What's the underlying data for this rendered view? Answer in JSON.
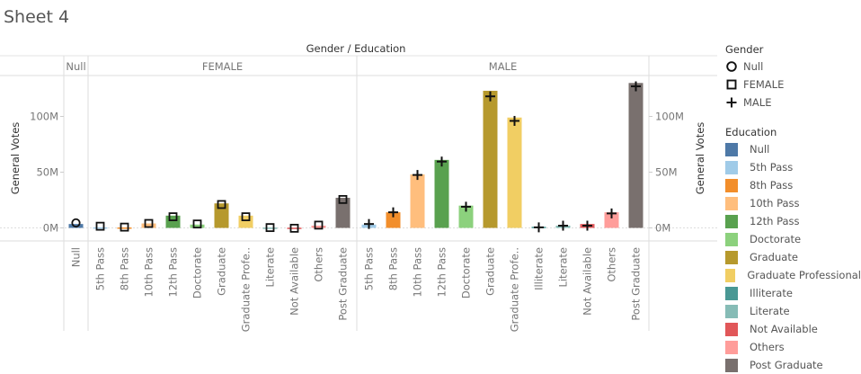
{
  "sheet": {
    "title": "Sheet 4"
  },
  "chart_data": {
    "type": "bar",
    "title": "Gender / Education",
    "ylabel": "General Votes",
    "ylim": [
      0,
      135000000
    ],
    "yticks": [
      {
        "value": 0,
        "label": "0M"
      },
      {
        "value": 50000000,
        "label": "50M"
      },
      {
        "value": 100000000,
        "label": "100M"
      }
    ],
    "panels": [
      {
        "gender": "Null",
        "label": "Null",
        "shape": "circle",
        "categories": [
          "Null"
        ],
        "values": [
          3500000
        ],
        "marks": [
          4500000
        ]
      },
      {
        "gender": "FEMALE",
        "label": "FEMALE",
        "shape": "square",
        "categories": [
          "5th Pass",
          "8th Pass",
          "10th Pass",
          "12th Pass",
          "Doctorate",
          "Graduate",
          "Graduate Profe..",
          "Literate",
          "Not Available",
          "Others",
          "Post Graduate"
        ],
        "values": [
          500000,
          400000,
          4000000,
          11000000,
          3000000,
          22000000,
          11000000,
          300000,
          200000,
          2000000,
          27000000
        ],
        "marks": [
          1500000,
          700000,
          4000000,
          10000000,
          3500000,
          21000000,
          10000000,
          300000,
          -300000,
          2500000,
          25500000
        ]
      },
      {
        "gender": "MALE",
        "label": "MALE",
        "shape": "plus",
        "categories": [
          "5th Pass",
          "8th Pass",
          "10th Pass",
          "12th Pass",
          "Doctorate",
          "Graduate",
          "Graduate Profe..",
          "Illiterate",
          "Literate",
          "Not Available",
          "Others",
          "Post Graduate"
        ],
        "values": [
          3000000,
          14000000,
          48000000,
          61000000,
          20000000,
          123000000,
          99000000,
          1000000,
          2000000,
          3500000,
          14000000,
          130000000
        ],
        "marks": [
          3500000,
          14000000,
          47500000,
          59500000,
          19000000,
          118000000,
          96000000,
          500000,
          2000000,
          2000000,
          13000000,
          127000000
        ]
      }
    ]
  },
  "legend": {
    "gender_title": "Gender",
    "gender": [
      {
        "label": "Null",
        "shape": "circle"
      },
      {
        "label": "FEMALE",
        "shape": "square"
      },
      {
        "label": "MALE",
        "shape": "plus"
      }
    ],
    "education_title": "Education",
    "education": [
      {
        "label": "Null",
        "color": "#4e79a7"
      },
      {
        "label": "5th Pass",
        "color": "#a0cbe8"
      },
      {
        "label": "8th Pass",
        "color": "#f28e2b"
      },
      {
        "label": "10th Pass",
        "color": "#ffbe7d"
      },
      {
        "label": "12th Pass",
        "color": "#59a14f"
      },
      {
        "label": "Doctorate",
        "color": "#8cd17d"
      },
      {
        "label": "Graduate",
        "color": "#b6992d"
      },
      {
        "label": "Graduate Professional",
        "color": "#f1ce63"
      },
      {
        "label": "Illiterate",
        "color": "#499894"
      },
      {
        "label": "Literate",
        "color": "#86bcb6"
      },
      {
        "label": "Not Available",
        "color": "#e15759"
      },
      {
        "label": "Others",
        "color": "#ff9d9a"
      },
      {
        "label": "Post Graduate",
        "color": "#79706e"
      }
    ]
  }
}
